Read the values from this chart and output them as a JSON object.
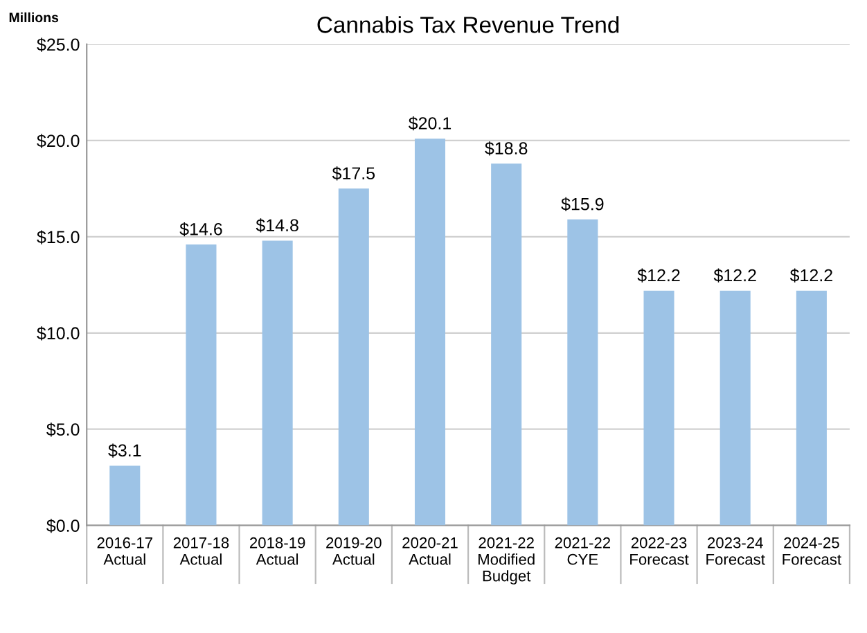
{
  "chart_data": {
    "type": "bar",
    "title": "Cannabis Tax Revenue Trend",
    "annotations": [
      "Millions"
    ],
    "categories": [
      "2016-17\nActual",
      "2017-18\nActual",
      "2018-19\nActual",
      "2019-20\nActual",
      "2020-21\nActual",
      "2021-22\nModified\nBudget",
      "2021-22\nCYE",
      "2022-23\nForecast",
      "2023-24\nForecast",
      "2024-25\nForecast"
    ],
    "values": [
      3.1,
      14.6,
      14.8,
      17.5,
      20.1,
      18.8,
      15.9,
      12.2,
      12.2,
      12.2
    ],
    "value_labels": [
      "$3.1",
      "$14.6",
      "$14.8",
      "$17.5",
      "$20.1",
      "$18.8",
      "$15.9",
      "$12.2",
      "$12.2",
      "$12.2"
    ],
    "color": "#9dc3e6",
    "ylim": [
      0,
      25
    ],
    "yticks": [
      {
        "value": 0,
        "label": "$0.0"
      },
      {
        "value": 5,
        "label": "$5.0"
      },
      {
        "value": 10,
        "label": "$10.0"
      },
      {
        "value": 15,
        "label": "$15.0"
      },
      {
        "value": 20,
        "label": "$20.0"
      },
      {
        "value": 25,
        "label": "$25.0"
      }
    ],
    "grid": "y",
    "legend": false
  }
}
